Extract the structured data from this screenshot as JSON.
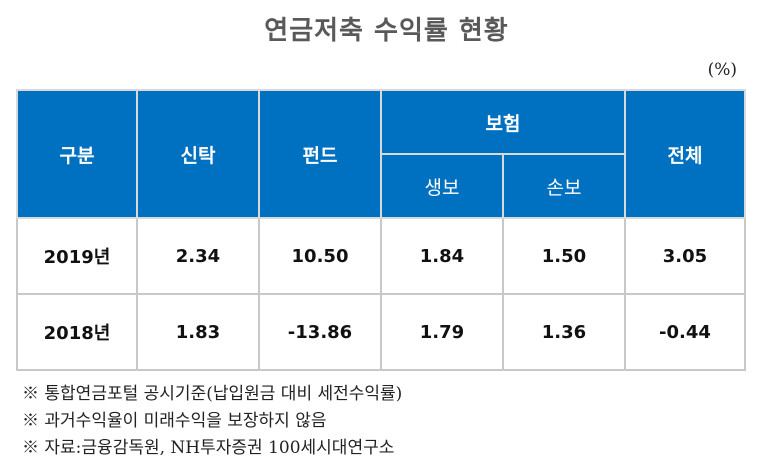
{
  "title": "연금저축 수익률 현황",
  "unit": "(%)",
  "table": {
    "headers": {
      "category": "구분",
      "trust": "신탁",
      "fund": "펀드",
      "insurance": "보험",
      "life": "생보",
      "nonlife": "손보",
      "total": "전체"
    },
    "rows": [
      {
        "year": "2019년",
        "trust": "2.34",
        "fund": "10.50",
        "life": "1.84",
        "nonlife": "1.50",
        "total": "3.05"
      },
      {
        "year": "2018년",
        "trust": "1.83",
        "fund": "-13.86",
        "life": "1.79",
        "nonlife": "1.36",
        "total": "-0.44"
      }
    ]
  },
  "notes": [
    "※ 통합연금포털 공시기준(납입원금 대비 세전수익률)",
    "※ 과거수익율이 미래수익을 보장하지 않음",
    "※ 자료:금융감독원, NH투자증권 100세시대연구소"
  ],
  "colors": {
    "header_bg": "#0070c0",
    "header_text": "#ffffff",
    "border": "#c8c8c8"
  }
}
